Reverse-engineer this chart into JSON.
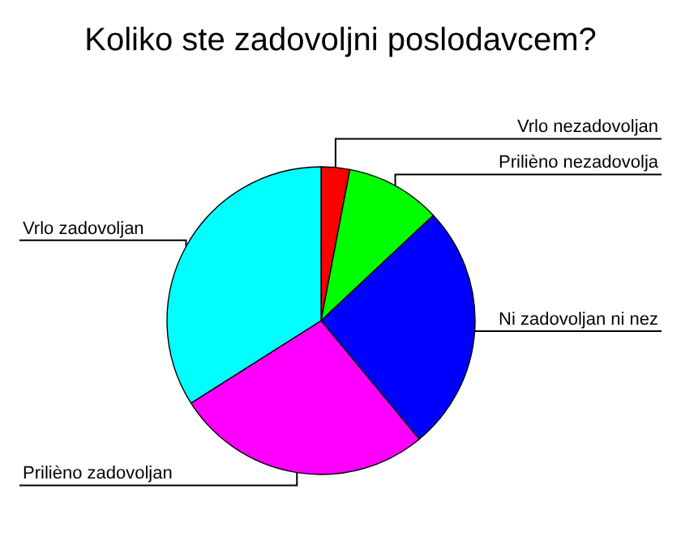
{
  "chart_data": {
    "type": "pie",
    "title": "Koliko ste zadovoljni poslodavcem?",
    "categories": [
      "Vrlo nezadovoljan",
      "Prilièno nezadovolja",
      "Ni zadovoljan ni nez",
      "Prilièno zadovoljan",
      "Vrlo zadovoljan"
    ],
    "values": [
      3,
      10,
      26,
      27,
      34
    ],
    "colors": [
      "#ff0000",
      "#00ff00",
      "#0000ff",
      "#ff00ff",
      "#00ffff"
    ]
  }
}
